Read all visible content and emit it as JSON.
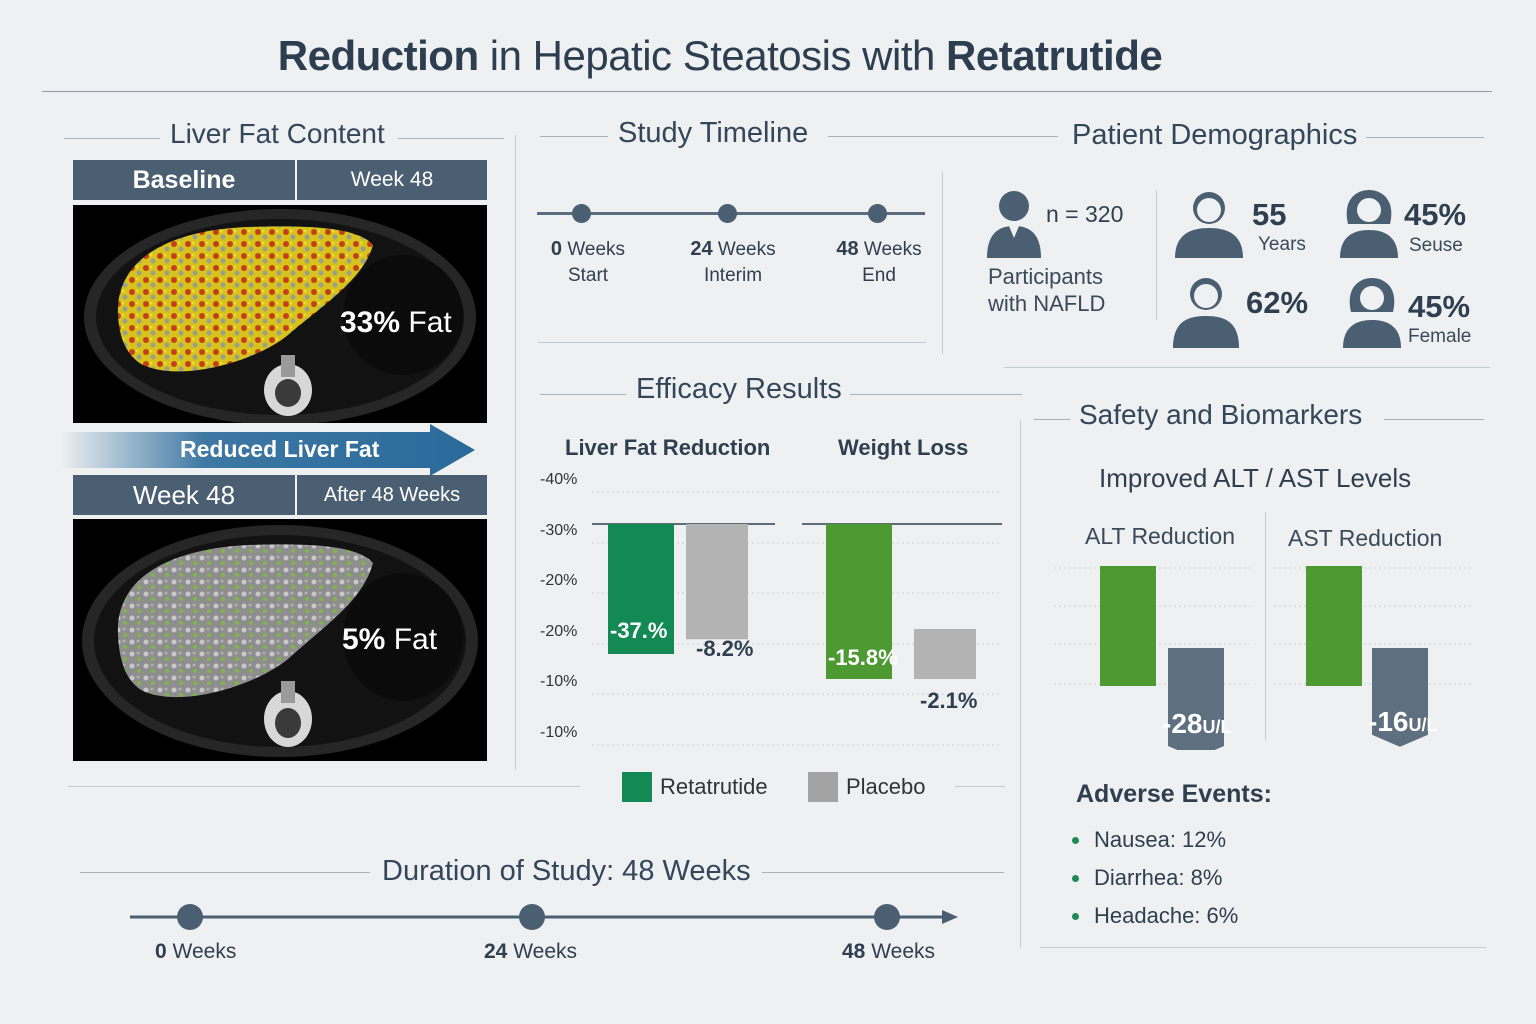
{
  "title": {
    "part1": "Reduction",
    "part2": " in ",
    "part3": "Hepatic Steatosis",
    "part4": " with ",
    "part5": "Retatrutide"
  },
  "liver": {
    "section_title": "Liver Fat Content",
    "tab_baseline": "Baseline",
    "tab_baseline_right": "Week 48",
    "baseline_fat_value": "33%",
    "baseline_fat_word": "Fat",
    "arrow_label": "Reduced Liver Fat",
    "tab_week48": "Week 48",
    "tab_week48_right": "After 48 Weeks",
    "week48_fat_value": "5%",
    "week48_fat_word": "Fat"
  },
  "timeline": {
    "section_title": "Study Timeline",
    "points": [
      {
        "num": "0",
        "unit": " Weeks",
        "sub": "Start"
      },
      {
        "num": "24",
        "unit": " Weeks",
        "sub": "Interim"
      },
      {
        "num": "48",
        "unit": " Weeks",
        "sub": "End"
      }
    ]
  },
  "demographics": {
    "section_title": "Patient Demographics",
    "n_label": "n = 320",
    "participants": "Participants",
    "participants2": "with NAFLD",
    "age_value": "55",
    "age_sub": "Years",
    "stat2_value": "45%",
    "stat2_sub": "Seuse",
    "stat3_value": "62%",
    "stat4_value": "45%",
    "stat4_sub": "Female"
  },
  "efficacy": {
    "section_title": "Efficacy Results",
    "legend_ret": "Retatrutide",
    "legend_pla": "Placebo"
  },
  "safety": {
    "section_title": "Safety and Biomarkers",
    "subtitle": "Improved ALT / AST Levels",
    "alt_label": "ALT Reduction",
    "ast_label": "AST Reduction",
    "alt_value": "-28",
    "alt_unit": "U/L",
    "ast_value": "-16",
    "ast_unit": "U/L",
    "ae_title": "Adverse Events:",
    "ae_items": [
      "Nausea: 12%",
      "Diarrhea: 8%",
      "Headache: 6%"
    ]
  },
  "duration": {
    "title": "Duration of Study: 48 Weeks",
    "points": [
      {
        "num": "0",
        "unit": " Weeks"
      },
      {
        "num": "24",
        "unit": " Weeks"
      },
      {
        "num": "48",
        "unit": " Weeks"
      }
    ]
  },
  "colors": {
    "retatrutide": "#138a55",
    "placebo": "#b3b3b3",
    "weight_ret": "#4e9a32",
    "biomarker_green": "#4e9a32",
    "biomarker_gray": "#5e7080",
    "header": "#4b5f72"
  },
  "chart_data": [
    {
      "type": "bar",
      "title": "Liver Fat Reduction",
      "y_tick_labels": [
        "-40%",
        "-30%",
        "-20%",
        "-20%",
        "-10%",
        "-10%"
      ],
      "series": [
        {
          "name": "Retatrutide",
          "values": [
            -37
          ]
        },
        {
          "name": "Placebo",
          "values": [
            -8.2
          ]
        }
      ],
      "data_labels": [
        "-37.%",
        "-8.2%"
      ]
    },
    {
      "type": "bar",
      "title": "Weight Loss",
      "series": [
        {
          "name": "Retatrutide",
          "values": [
            -15.8
          ]
        },
        {
          "name": "Placebo",
          "values": [
            -2.1
          ]
        }
      ],
      "data_labels": [
        "-15.8%",
        "-2.1%"
      ]
    },
    {
      "type": "bar",
      "title": "Improved ALT / AST Levels",
      "categories": [
        "ALT Reduction",
        "AST Reduction"
      ],
      "values": [
        -28,
        -16
      ],
      "unit": "U/L"
    }
  ]
}
